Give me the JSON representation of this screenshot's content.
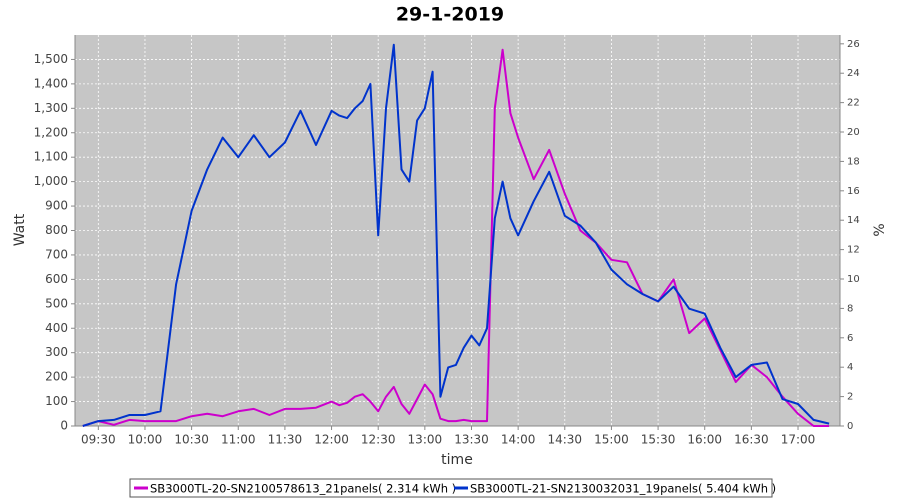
{
  "chart_data": {
    "type": "line",
    "title": "29-1-2019",
    "xlabel": "time",
    "ylabel": "Watt",
    "y2label": "%",
    "x": [
      "09:20",
      "09:30",
      "09:40",
      "09:50",
      "10:00",
      "10:10",
      "10:20",
      "10:30",
      "10:40",
      "10:50",
      "11:00",
      "11:10",
      "11:20",
      "11:30",
      "11:40",
      "11:50",
      "12:00",
      "12:05",
      "12:10",
      "12:15",
      "12:20",
      "12:25",
      "12:30",
      "12:35",
      "12:40",
      "12:45",
      "12:50",
      "12:55",
      "13:00",
      "13:05",
      "13:10",
      "13:15",
      "13:20",
      "13:25",
      "13:30",
      "13:35",
      "13:40",
      "13:45",
      "13:50",
      "13:55",
      "14:00",
      "14:10",
      "14:20",
      "14:30",
      "14:40",
      "14:50",
      "15:00",
      "15:10",
      "15:20",
      "15:30",
      "15:40",
      "15:50",
      "16:00",
      "16:10",
      "16:20",
      "16:30",
      "16:40",
      "16:50",
      "17:00",
      "17:10",
      "17:20"
    ],
    "series": [
      {
        "name": "SB3000TL-20-SN2100578613_21panels( 2.314 kWh )",
        "color": "#cc00cc",
        "values": [
          0,
          20,
          5,
          25,
          20,
          20,
          20,
          40,
          50,
          40,
          60,
          70,
          45,
          70,
          70,
          75,
          100,
          85,
          95,
          120,
          130,
          100,
          60,
          120,
          160,
          90,
          50,
          110,
          170,
          130,
          30,
          20,
          20,
          25,
          20,
          20,
          20,
          1300,
          1540,
          1280,
          1180,
          1010,
          1130,
          950,
          800,
          750,
          680,
          670,
          540,
          510,
          600,
          380,
          440,
          310,
          180,
          250,
          200,
          120,
          50,
          0,
          0
        ]
      },
      {
        "name": "SB3000TL-21-SN2130032031_19panels( 5.404 kWh )",
        "color": "#0033cc",
        "values": [
          0,
          20,
          25,
          45,
          45,
          60,
          580,
          880,
          1050,
          1180,
          1100,
          1190,
          1100,
          1160,
          1290,
          1150,
          1290,
          1270,
          1260,
          1300,
          1330,
          1400,
          780,
          1300,
          1560,
          1050,
          1000,
          1250,
          1300,
          1450,
          120,
          240,
          250,
          320,
          370,
          330,
          400,
          850,
          1000,
          850,
          780,
          920,
          1040,
          860,
          820,
          750,
          640,
          580,
          540,
          510,
          570,
          480,
          460,
          320,
          200,
          250,
          260,
          110,
          90,
          25,
          10
        ]
      }
    ],
    "xlim": [
      "09:15",
      "17:27"
    ],
    "xticks": [
      "09:30",
      "10:00",
      "10:30",
      "11:00",
      "11:30",
      "12:00",
      "12:30",
      "13:00",
      "13:30",
      "14:00",
      "14:30",
      "15:00",
      "15:30",
      "16:00",
      "16:30",
      "17:00"
    ],
    "ylim": [
      0,
      1600
    ],
    "yticks": [
      0,
      100,
      200,
      300,
      400,
      500,
      600,
      700,
      800,
      900,
      {
        "value": 1000,
        "label": "1,000"
      },
      {
        "value": 1100,
        "label": "1,100"
      },
      {
        "value": 1200,
        "label": "1,200"
      },
      {
        "value": 1300,
        "label": "1,300"
      },
      {
        "value": 1400,
        "label": "1,400"
      },
      {
        "value": 1500,
        "label": "1,500"
      }
    ],
    "y2lim": [
      0,
      26.6
    ],
    "y2ticks": [
      0,
      2,
      4,
      6,
      8,
      10,
      12,
      14,
      16,
      18,
      20,
      22,
      24,
      26
    ],
    "grid": true,
    "legend": "bottom"
  }
}
